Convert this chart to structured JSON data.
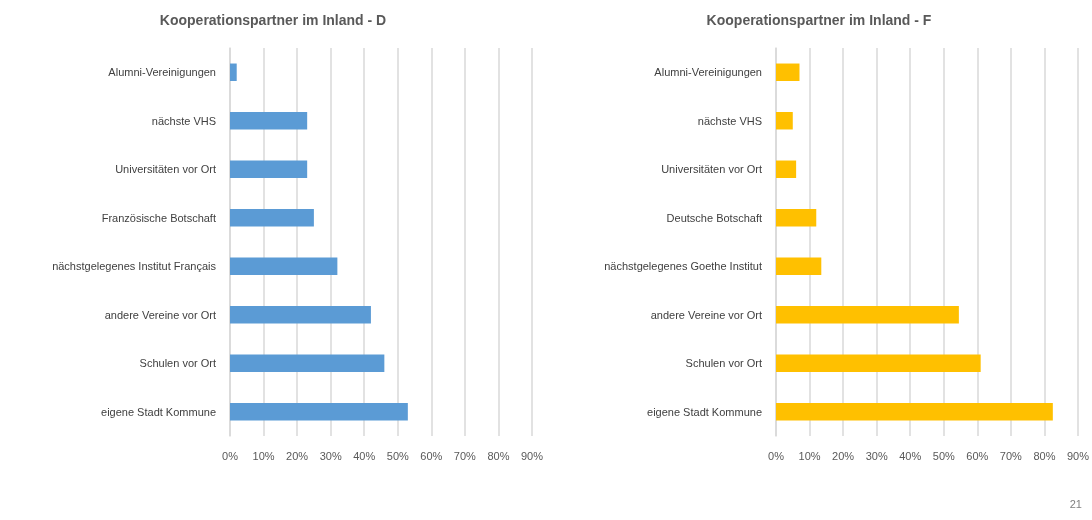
{
  "chart_data": [
    {
      "type": "bar",
      "orientation": "horizontal",
      "title": "Kooperationspartner im Inland - D",
      "categories": [
        "Alumni-Vereinigungen",
        "nächste VHS",
        "Universitäten vor Ort",
        "Französische Botschaft",
        "nächstgelegenes Institut Français",
        "andere Vereine vor Ort",
        "Schulen vor Ort",
        "eigene Stadt Kommune"
      ],
      "values": [
        2,
        23,
        23,
        25,
        32,
        42,
        46,
        53
      ],
      "color": "#5b9bd5",
      "xlim": [
        0,
        90
      ],
      "xticks": [
        {
          "value": 0,
          "label": "0%"
        },
        {
          "value": 10,
          "label": "10%"
        },
        {
          "value": 20,
          "label": "20%"
        },
        {
          "value": 30,
          "label": "30%"
        },
        {
          "value": 40,
          "label": "40%"
        },
        {
          "value": 50,
          "label": "50%"
        },
        {
          "value": 60,
          "label": "60%"
        },
        {
          "value": 70,
          "label": "70%"
        },
        {
          "value": 80,
          "label": "80%"
        },
        {
          "value": 90,
          "label": "90%"
        }
      ],
      "grid": "x"
    },
    {
      "type": "bar",
      "orientation": "horizontal",
      "title": "Kooperationspartner im Inland - F",
      "categories": [
        "Alumni-Vereinigungen",
        "nächste VHS",
        "Universitäten vor Ort",
        "Deutsche Botschaft",
        "nächstgelegenes Goethe Institut",
        "andere Vereine vor Ort",
        "Schulen vor Ort",
        "eigene Stadt Kommune"
      ],
      "values": [
        7,
        5,
        6,
        12,
        13.5,
        54.5,
        61,
        82.5
      ],
      "color": "#ffc000",
      "xlim": [
        0,
        90
      ],
      "xticks": [
        {
          "value": 0,
          "label": "0%"
        },
        {
          "value": 10,
          "label": "10%"
        },
        {
          "value": 20,
          "label": "20%"
        },
        {
          "value": 30,
          "label": "30%"
        },
        {
          "value": 40,
          "label": "40%"
        },
        {
          "value": 50,
          "label": "50%"
        },
        {
          "value": 60,
          "label": "60%"
        },
        {
          "value": 70,
          "label": "70%"
        },
        {
          "value": 80,
          "label": "80%"
        },
        {
          "value": 90,
          "label": "90%"
        }
      ],
      "grid": "x",
      "annotations": [
        "21"
      ]
    }
  ]
}
